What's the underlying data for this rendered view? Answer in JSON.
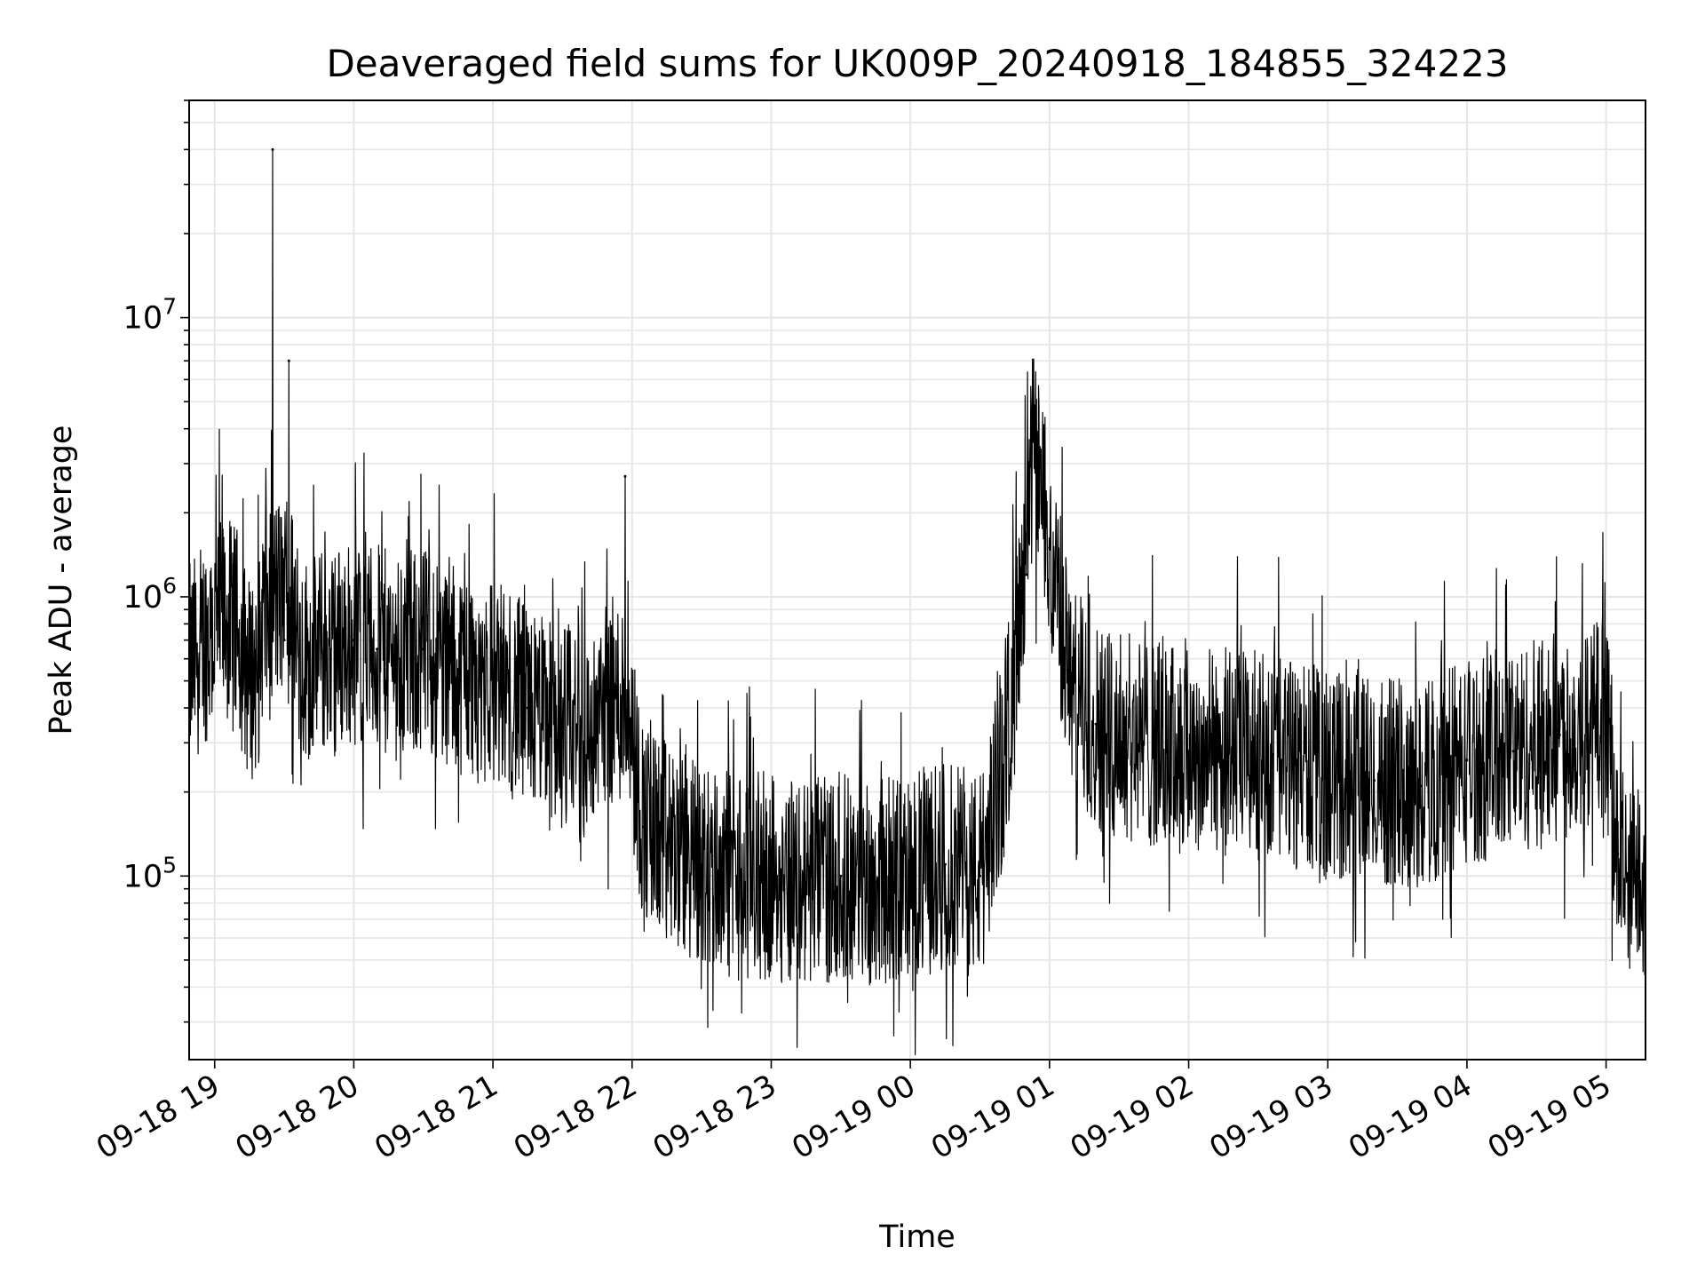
{
  "chart_data": {
    "type": "line",
    "title": "Deaveraged field sums for UK009P_20240918_184855_324223",
    "xlabel": "Time",
    "ylabel": "Peak ADU - average",
    "yscale": "log",
    "ylim": [
      22000,
      60000000
    ],
    "xlim": [
      "2024-09-18 18:49",
      "2024-09-19 05:17"
    ],
    "grid": true,
    "line_color": "#000000",
    "grid_color": "#e6e6e6",
    "x_ticks": [
      "09-18 19",
      "09-18 20",
      "09-18 21",
      "09-18 22",
      "09-18 23",
      "09-19 00",
      "09-19 01",
      "09-19 02",
      "09-19 03",
      "09-19 04",
      "09-19 05"
    ],
    "y_ticks": [
      {
        "base": "10",
        "exp": "5",
        "value": 100000
      },
      {
        "base": "10",
        "exp": "6",
        "value": 1000000
      },
      {
        "base": "10",
        "exp": "7",
        "value": 10000000
      }
    ],
    "series": [
      {
        "x": [
          "2024-09-18 18:49",
          "2024-09-18 18:55",
          "2024-09-18 19:05",
          "2024-09-18 19:10",
          "2024-09-18 19:15",
          "2024-09-18 19:20",
          "2024-09-18 19:25",
          "2024-09-18 19:30",
          "2024-09-18 19:32",
          "2024-09-18 19:35",
          "2024-09-18 19:40",
          "2024-09-18 19:50",
          "2024-09-18 20:00",
          "2024-09-18 20:10",
          "2024-09-18 20:20",
          "2024-09-18 20:30",
          "2024-09-18 20:45",
          "2024-09-18 21:00",
          "2024-09-18 21:15",
          "2024-09-18 21:30",
          "2024-09-18 21:45",
          "2024-09-18 21:57",
          "2024-09-18 22:00",
          "2024-09-18 22:05",
          "2024-09-18 22:15",
          "2024-09-18 22:30",
          "2024-09-18 22:45",
          "2024-09-18 23:00",
          "2024-09-18 23:15",
          "2024-09-18 23:30",
          "2024-09-18 23:45",
          "2024-09-19 00:00",
          "2024-09-19 00:15",
          "2024-09-19 00:30",
          "2024-09-19 00:40",
          "2024-09-19 00:50",
          "2024-09-19 00:53",
          "2024-09-19 01:00",
          "2024-09-19 01:10",
          "2024-09-19 01:20",
          "2024-09-19 01:40",
          "2024-09-19 02:00",
          "2024-09-19 02:20",
          "2024-09-19 02:40",
          "2024-09-19 03:00",
          "2024-09-19 03:20",
          "2024-09-19 03:40",
          "2024-09-19 04:00",
          "2024-09-19 04:20",
          "2024-09-19 04:40",
          "2024-09-19 04:55",
          "2024-09-19 05:00",
          "2024-09-19 05:05",
          "2024-09-19 05:10",
          "2024-09-19 05:14",
          "2024-09-19 05:17"
        ],
        "values": [
          550000,
          700000,
          820000,
          750000,
          500000,
          600000,
          40000000,
          700000,
          7000000,
          650000,
          600000,
          650000,
          700000,
          650000,
          600000,
          650000,
          550000,
          500000,
          400000,
          350000,
          300000,
          2700000,
          300000,
          150000,
          130000,
          110000,
          100000,
          100000,
          95000,
          100000,
          95000,
          100000,
          110000,
          100000,
          250000,
          1200000,
          3600000,
          1500000,
          450000,
          350000,
          300000,
          280000,
          280000,
          260000,
          230000,
          220000,
          210000,
          260000,
          280000,
          320000,
          350000,
          400000,
          120000,
          85000,
          110000,
          100000
        ]
      }
    ]
  }
}
